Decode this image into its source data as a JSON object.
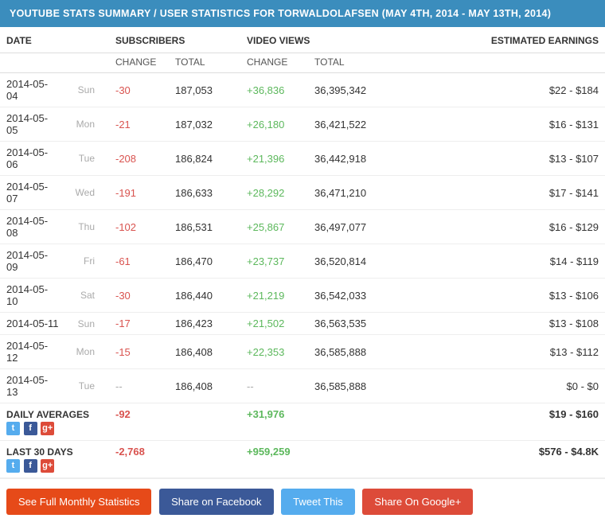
{
  "header": {
    "title": "YOUTUBE STATS SUMMARY / USER STATISTICS FOR TORWALDOLAFSEN (MAY 4TH, 2014 - MAY 13TH, 2014)"
  },
  "columns": {
    "date": "DATE",
    "subscribers": "SUBSCRIBERS",
    "views": "VIDEO VIEWS",
    "earnings": "ESTIMATED EARNINGS",
    "change": "CHANGE",
    "total": "TOTAL"
  },
  "rows": [
    {
      "date": "2014-05-04",
      "day": "Sun",
      "sub_chg": "-30",
      "sub_chg_cls": "neg",
      "sub_tot": "187,053",
      "view_chg": "+36,836",
      "view_chg_cls": "pos",
      "view_tot": "36,395,342",
      "earn": "$22  -  $184"
    },
    {
      "date": "2014-05-05",
      "day": "Mon",
      "sub_chg": "-21",
      "sub_chg_cls": "neg",
      "sub_tot": "187,032",
      "view_chg": "+26,180",
      "view_chg_cls": "pos",
      "view_tot": "36,421,522",
      "earn": "$16  -  $131"
    },
    {
      "date": "2014-05-06",
      "day": "Tue",
      "sub_chg": "-208",
      "sub_chg_cls": "neg",
      "sub_tot": "186,824",
      "view_chg": "+21,396",
      "view_chg_cls": "pos",
      "view_tot": "36,442,918",
      "earn": "$13  -  $107"
    },
    {
      "date": "2014-05-07",
      "day": "Wed",
      "sub_chg": "-191",
      "sub_chg_cls": "neg",
      "sub_tot": "186,633",
      "view_chg": "+28,292",
      "view_chg_cls": "pos",
      "view_tot": "36,471,210",
      "earn": "$17  -  $141"
    },
    {
      "date": "2014-05-08",
      "day": "Thu",
      "sub_chg": "-102",
      "sub_chg_cls": "neg",
      "sub_tot": "186,531",
      "view_chg": "+25,867",
      "view_chg_cls": "pos",
      "view_tot": "36,497,077",
      "earn": "$16  -  $129"
    },
    {
      "date": "2014-05-09",
      "day": "Fri",
      "sub_chg": "-61",
      "sub_chg_cls": "neg",
      "sub_tot": "186,470",
      "view_chg": "+23,737",
      "view_chg_cls": "pos",
      "view_tot": "36,520,814",
      "earn": "$14  -  $119"
    },
    {
      "date": "2014-05-10",
      "day": "Sat",
      "sub_chg": "-30",
      "sub_chg_cls": "neg",
      "sub_tot": "186,440",
      "view_chg": "+21,219",
      "view_chg_cls": "pos",
      "view_tot": "36,542,033",
      "earn": "$13  -  $106"
    },
    {
      "date": "2014-05-11",
      "day": "Sun",
      "sub_chg": "-17",
      "sub_chg_cls": "neg",
      "sub_tot": "186,423",
      "view_chg": "+21,502",
      "view_chg_cls": "pos",
      "view_tot": "36,563,535",
      "earn": "$13  -  $108"
    },
    {
      "date": "2014-05-12",
      "day": "Mon",
      "sub_chg": "-15",
      "sub_chg_cls": "neg",
      "sub_tot": "186,408",
      "view_chg": "+22,353",
      "view_chg_cls": "pos",
      "view_tot": "36,585,888",
      "earn": "$13  -  $112"
    },
    {
      "date": "2014-05-13",
      "day": "Tue",
      "sub_chg": "--",
      "sub_chg_cls": "dash",
      "sub_tot": "186,408",
      "view_chg": "--",
      "view_chg_cls": "dash",
      "view_tot": "36,585,888",
      "earn": "$0  -  $0"
    }
  ],
  "summary": {
    "daily": {
      "label": "DAILY AVERAGES",
      "sub_chg": "-92",
      "view_chg": "+31,976",
      "earn": "$19  -  $160"
    },
    "last30": {
      "label": "LAST 30 DAYS",
      "sub_chg": "-2,768",
      "view_chg": "+959,259",
      "earn": "$576  -  $4.8K"
    }
  },
  "icons": {
    "twitter": "t",
    "facebook": "f",
    "gplus": "g+"
  },
  "buttons": {
    "full": "See Full Monthly Statistics",
    "fb": "Share on Facebook",
    "tw": "Tweet This",
    "gp": "Share On Google+"
  },
  "colors": {
    "header_bg": "#3b8dbd",
    "neg": "#d9534f",
    "pos": "#5cb85c",
    "btn_orange": "#e64a19",
    "btn_blue": "#3b5998",
    "btn_cyan": "#55acee",
    "btn_red": "#dd4b39"
  }
}
